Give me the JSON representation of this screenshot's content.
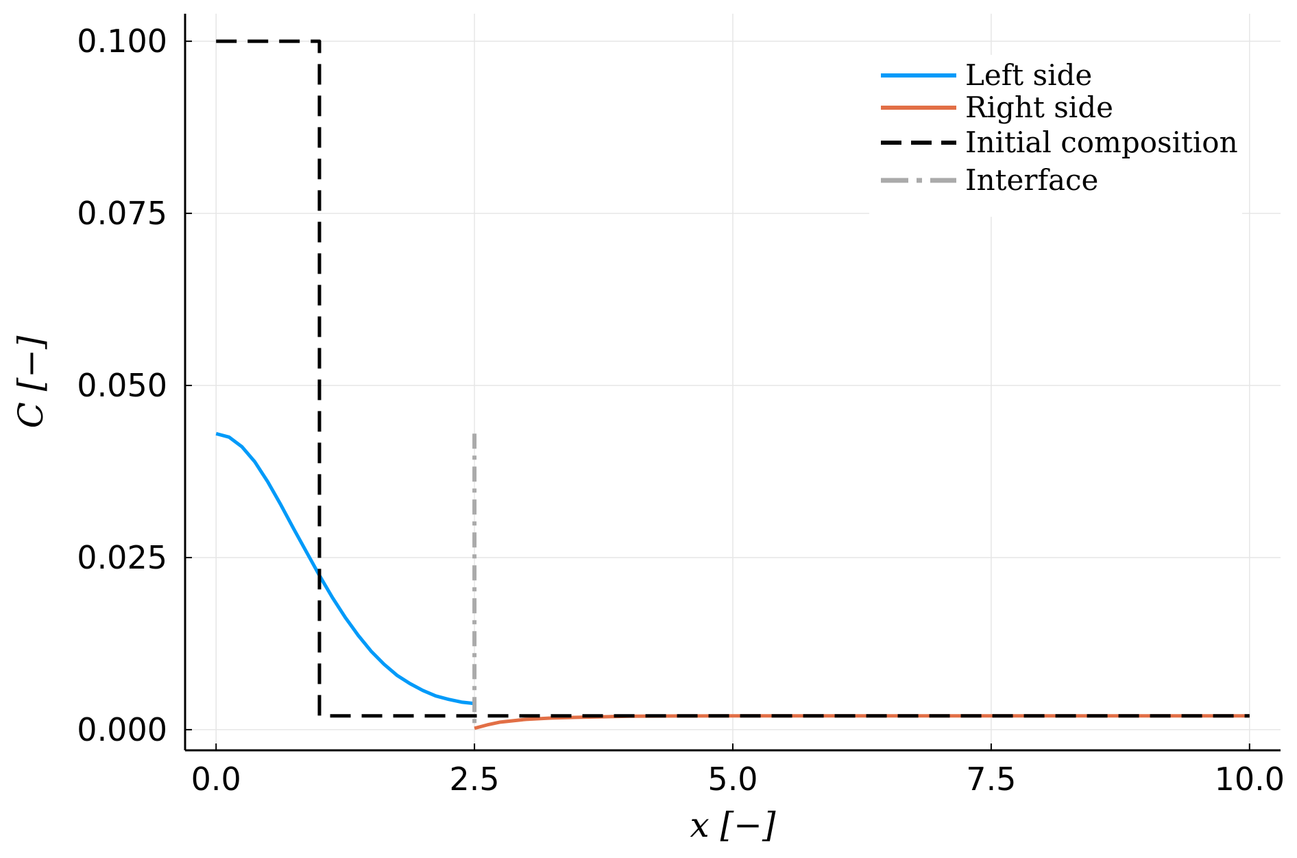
{
  "chart_data": {
    "type": "line",
    "xlabel": "x [−]",
    "ylabel": "C [−]",
    "xlim": [
      -0.3,
      10.3
    ],
    "ylim": [
      -0.003,
      0.104
    ],
    "x_ticks": [
      0.0,
      2.5,
      5.0,
      7.5,
      10.0
    ],
    "x_tick_labels": [
      "0.0",
      "2.5",
      "5.0",
      "7.5",
      "10.0"
    ],
    "y_ticks": [
      0.0,
      0.025,
      0.05,
      0.075,
      0.1
    ],
    "y_tick_labels": [
      "0.000",
      "0.025",
      "0.050",
      "0.075",
      "0.100"
    ],
    "grid": true,
    "legend_position": "top-right",
    "series": [
      {
        "name": "Left side",
        "color": "#009af9",
        "style": "solid",
        "x": [
          0.0,
          0.125,
          0.25,
          0.375,
          0.5,
          0.625,
          0.75,
          0.875,
          1.0,
          1.125,
          1.25,
          1.375,
          1.5,
          1.625,
          1.75,
          1.875,
          2.0,
          2.125,
          2.25,
          2.375,
          2.5
        ],
        "y": [
          0.043,
          0.0425,
          0.0411,
          0.0389,
          0.036,
          0.0327,
          0.0292,
          0.0258,
          0.0224,
          0.0192,
          0.0163,
          0.0137,
          0.0114,
          0.0095,
          0.0079,
          0.0067,
          0.0057,
          0.0049,
          0.0044,
          0.004,
          0.0038
        ]
      },
      {
        "name": "Right side",
        "color": "#e26f46",
        "style": "solid",
        "x": [
          2.5,
          2.625,
          2.75,
          3.0,
          3.25,
          3.5,
          4.0,
          4.5,
          5.0,
          6.0,
          7.0,
          8.0,
          9.0,
          10.0
        ],
        "y": [
          0.0002,
          0.0007,
          0.0011,
          0.0015,
          0.0017,
          0.0018,
          0.00195,
          0.00199,
          0.002,
          0.002,
          0.002,
          0.002,
          0.002,
          0.002
        ]
      },
      {
        "name": "Initial composition",
        "color": "#000000",
        "style": "dashed",
        "x": [
          0.0,
          1.0,
          1.0,
          10.0
        ],
        "y": [
          0.1,
          0.1,
          0.002,
          0.002
        ]
      },
      {
        "name": "Interface",
        "color": "#aaaaaa",
        "style": "dashdot",
        "x": [
          2.5,
          2.5
        ],
        "y": [
          0.043,
          0.0
        ]
      }
    ]
  }
}
